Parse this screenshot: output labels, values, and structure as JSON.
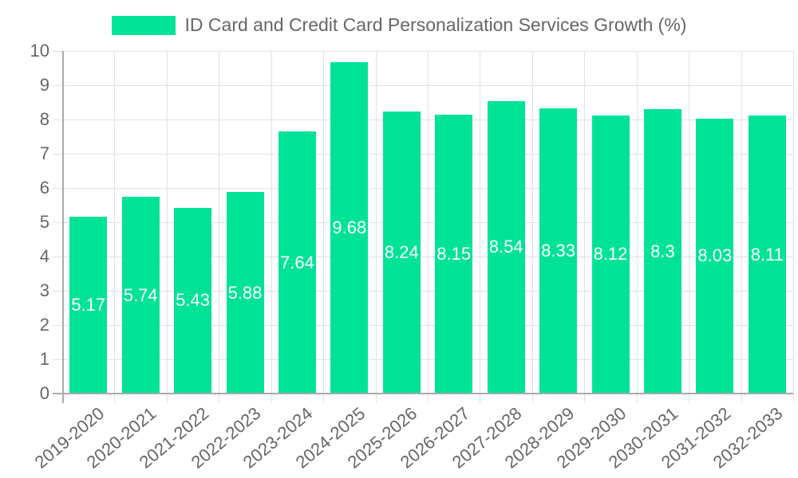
{
  "chart_data": {
    "type": "bar",
    "title": "",
    "legend": [
      "ID Card and Credit Card Personalization Services Growth (%)"
    ],
    "legend_position": "top",
    "xlabel": "",
    "ylabel": "",
    "ylim": [
      0,
      10
    ],
    "yticks": [
      "0",
      "1",
      "2",
      "3",
      "4",
      "5",
      "6",
      "7",
      "8",
      "9",
      "10"
    ],
    "grid": true,
    "categories": [
      "2019-2020",
      "2020-2021",
      "2021-2022",
      "2022-2023",
      "2023-2024",
      "2024-2025",
      "2025-2026",
      "2026-2027",
      "2027-2028",
      "2028-2029",
      "2029-2030",
      "2030-2031",
      "2031-2032",
      "2032-2033"
    ],
    "series": [
      {
        "name": "ID Card and Credit Card Personalization Services Growth (%)",
        "color": "#00e396",
        "values": [
          5.17,
          5.74,
          5.43,
          5.88,
          7.64,
          9.68,
          8.24,
          8.15,
          8.54,
          8.33,
          8.12,
          8.3,
          8.03,
          8.11
        ],
        "labels": [
          "5.17",
          "5.74",
          "5.43",
          "5.88",
          "7.64",
          "9.68",
          "8.24",
          "8.15",
          "8.54",
          "8.33",
          "8.12",
          "8.3",
          "8.03",
          "8.11"
        ]
      }
    ]
  }
}
